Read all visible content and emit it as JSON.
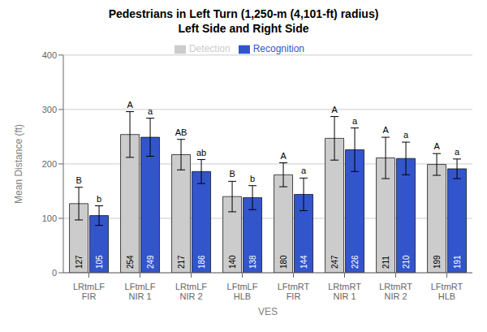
{
  "chart_data": {
    "type": "bar",
    "title": "Pedestrians in Left Turn (1,250-m (4,101-ft) radius)",
    "subtitle": "Left Side and Right Side",
    "x_label": "VES",
    "y_label": "Mean Distance (ft)",
    "categories": [
      "LRtmLF\nFIR",
      "LFtmLF\nNIR 1",
      "LRtmLF\nNIR 2",
      "LFtmLF\nHLB",
      "LFtmRT\nFIR",
      "LRtmRT\nNIR 1",
      "LRtmRT\nNIR 2",
      "LFtmRT\nHLB"
    ],
    "series": [
      {
        "name": "Detection",
        "color": "#cccccc",
        "values": [
          127,
          254,
          217,
          140,
          180,
          247,
          211,
          199
        ],
        "errors": [
          30,
          42,
          28,
          28,
          22,
          40,
          38,
          20
        ],
        "letters": [
          "B",
          "A",
          "AB",
          "B",
          "A",
          "A",
          "A",
          "A"
        ]
      },
      {
        "name": "Recognition",
        "color": "#3355cc",
        "values": [
          105,
          249,
          186,
          138,
          144,
          226,
          210,
          191
        ],
        "errors": [
          18,
          35,
          22,
          22,
          30,
          40,
          30,
          18
        ],
        "letters": [
          "b",
          "a",
          "ab",
          "b",
          "a",
          "a",
          "a",
          "a"
        ]
      }
    ],
    "ylim": [
      0,
      400
    ],
    "yticks": [
      0,
      100,
      200,
      300,
      400
    ],
    "grid": true,
    "legend": "top",
    "data_labels": true
  }
}
